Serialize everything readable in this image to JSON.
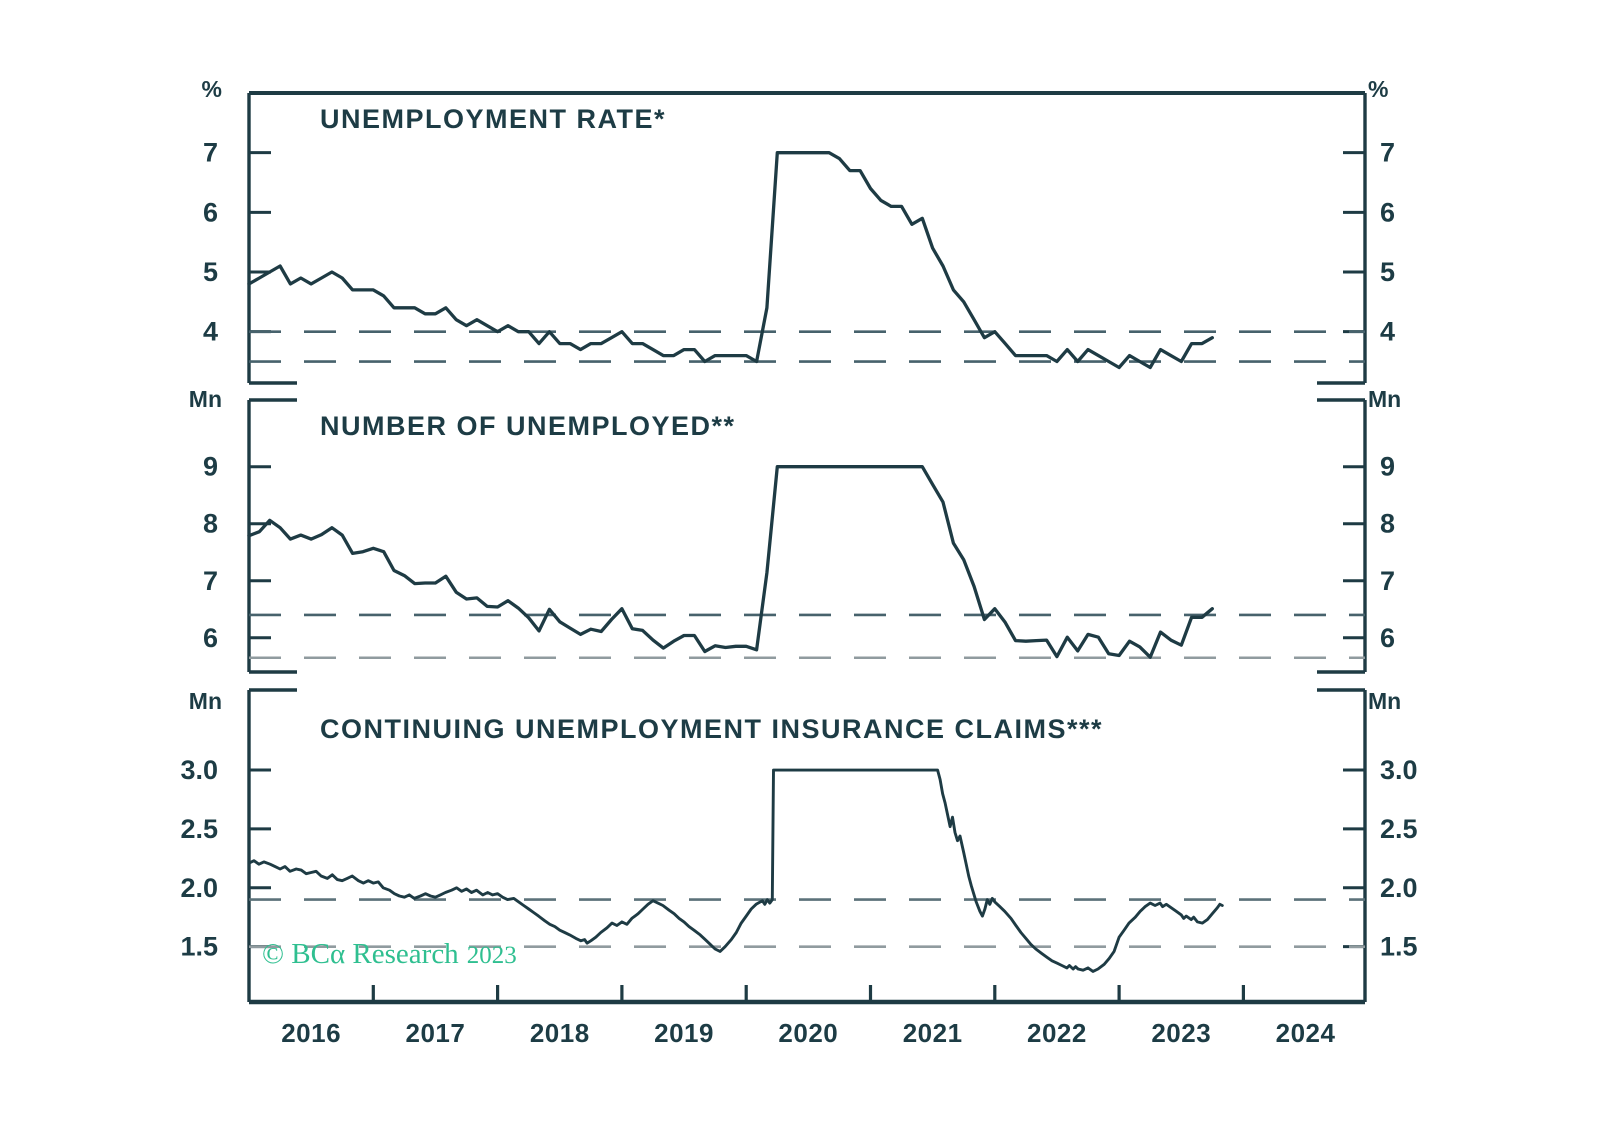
{
  "branding": {
    "copyright_main": "© BCα Research",
    "copyright_year": "2023"
  },
  "style": {
    "background": "#ffffff",
    "line_color": "#1e3b44",
    "text_color": "#1d3c45",
    "frame_color": "#1e3b44",
    "dash_dark": "#47626c",
    "dash_light": "#909b9f",
    "accent_green": "#2fbf90"
  },
  "x_axis": {
    "start_year": 2016,
    "end": 2024.98,
    "tick_years": [
      2017,
      2018,
      2019,
      2020,
      2021,
      2022,
      2023,
      2024
    ],
    "labels": [
      "2016",
      "2017",
      "2018",
      "2019",
      "2020",
      "2021",
      "2022",
      "2023",
      "2024"
    ]
  },
  "chart_data": [
    {
      "type": "line",
      "panel": "top",
      "title": "UNEMPLOYMENT RATE*",
      "unit_left": "%",
      "unit_right": "%",
      "yticks": [
        4,
        5,
        6,
        7
      ],
      "ytick_labels": [
        "4",
        "5",
        "6",
        "7"
      ],
      "ylim": [
        3.14,
        8.0
      ],
      "grid": false,
      "dashed_lines": [
        {
          "value": 4.0,
          "color": "#47626c"
        },
        {
          "value": 3.5,
          "color": "#47626c"
        }
      ],
      "series": {
        "name": "unemployment-rate",
        "frequency": "monthly",
        "x_start_year": 2016,
        "clip_max": 7.0,
        "values": [
          4.8,
          4.9,
          5.0,
          5.1,
          4.8,
          4.9,
          4.8,
          4.9,
          5.0,
          4.9,
          4.7,
          4.7,
          4.7,
          4.6,
          4.4,
          4.4,
          4.4,
          4.3,
          4.3,
          4.4,
          4.2,
          4.1,
          4.2,
          4.1,
          4.0,
          4.1,
          4.0,
          4.0,
          3.8,
          4.0,
          3.8,
          3.8,
          3.7,
          3.8,
          3.8,
          3.9,
          4.0,
          3.8,
          3.8,
          3.7,
          3.6,
          3.6,
          3.7,
          3.7,
          3.5,
          3.6,
          3.6,
          3.6,
          3.6,
          3.5,
          4.4,
          7.0,
          7.0,
          7.0,
          7.0,
          7.0,
          7.0,
          6.9,
          6.7,
          6.7,
          6.4,
          6.2,
          6.1,
          6.1,
          5.8,
          5.9,
          5.4,
          5.1,
          4.7,
          4.5,
          4.2,
          3.9,
          4.0,
          3.8,
          3.6,
          3.6,
          3.6,
          3.6,
          3.5,
          3.7,
          3.5,
          3.7,
          3.6,
          3.5,
          3.4,
          3.6,
          3.5,
          3.4,
          3.7,
          3.6,
          3.5,
          3.8,
          3.8,
          3.9
        ]
      }
    },
    {
      "type": "line",
      "panel": "middle",
      "title": "NUMBER OF UNEMPLOYED**",
      "unit_left": "Mn",
      "unit_right": "Mn",
      "yticks": [
        6,
        7,
        8,
        9
      ],
      "ytick_labels": [
        "6",
        "7",
        "8",
        "9"
      ],
      "ylim": [
        5.4,
        10.17
      ],
      "grid": false,
      "dashed_lines": [
        {
          "value": 6.4,
          "color": "#47626c"
        },
        {
          "value": 5.65,
          "color": "#909b9f"
        }
      ],
      "series": {
        "name": "number-of-unemployed",
        "frequency": "monthly",
        "x_start_year": 2016,
        "clip_max": 9.0,
        "values": [
          7.79,
          7.86,
          8.06,
          7.93,
          7.73,
          7.8,
          7.73,
          7.81,
          7.93,
          7.8,
          7.48,
          7.51,
          7.57,
          7.51,
          7.18,
          7.09,
          6.95,
          6.96,
          6.96,
          7.08,
          6.8,
          6.68,
          6.7,
          6.55,
          6.54,
          6.65,
          6.52,
          6.35,
          6.12,
          6.5,
          6.28,
          6.17,
          6.06,
          6.15,
          6.11,
          6.32,
          6.51,
          6.16,
          6.13,
          5.96,
          5.82,
          5.94,
          6.04,
          6.04,
          5.76,
          5.86,
          5.83,
          5.85,
          5.85,
          5.79,
          7.14,
          9.0,
          9.0,
          9.0,
          9.0,
          9.0,
          9.0,
          9.0,
          9.0,
          9.0,
          9.0,
          9.0,
          9.0,
          9.0,
          9.0,
          9.0,
          8.69,
          8.38,
          7.66,
          7.37,
          6.9,
          6.32,
          6.51,
          6.27,
          5.95,
          5.94,
          5.95,
          5.96,
          5.67,
          6.01,
          5.77,
          6.06,
          6.01,
          5.72,
          5.69,
          5.94,
          5.84,
          5.66,
          6.1,
          5.96,
          5.87,
          6.36,
          6.36,
          6.51
        ]
      }
    },
    {
      "type": "line",
      "panel": "bottom",
      "title": "CONTINUING UNEMPLOYMENT INSURANCE CLAIMS***",
      "unit_left": "Mn",
      "unit_right": "Mn",
      "yticks": [
        1.5,
        2.0,
        2.5,
        3.0
      ],
      "ytick_labels": [
        "1.5",
        "2.0",
        "2.5",
        "3.0"
      ],
      "ylim": [
        1.03,
        3.68
      ],
      "grid": false,
      "dashed_lines": [
        {
          "value": 1.9,
          "color": "#5c727a"
        },
        {
          "value": 1.5,
          "color": "#909b9f"
        }
      ],
      "series": {
        "name": "continuing-claims",
        "frequency": "weekly",
        "x_start_year": 2016,
        "clip_max": 3.0,
        "points": [
          [
            0.0,
            2.21
          ],
          [
            0.04,
            2.23
          ],
          [
            0.08,
            2.2
          ],
          [
            0.12,
            2.22
          ],
          [
            0.17,
            2.2
          ],
          [
            0.21,
            2.18
          ],
          [
            0.25,
            2.16
          ],
          [
            0.29,
            2.18
          ],
          [
            0.33,
            2.14
          ],
          [
            0.38,
            2.16
          ],
          [
            0.42,
            2.15
          ],
          [
            0.46,
            2.12
          ],
          [
            0.5,
            2.13
          ],
          [
            0.54,
            2.14
          ],
          [
            0.58,
            2.1
          ],
          [
            0.63,
            2.08
          ],
          [
            0.67,
            2.11
          ],
          [
            0.71,
            2.07
          ],
          [
            0.75,
            2.06
          ],
          [
            0.79,
            2.08
          ],
          [
            0.83,
            2.1
          ],
          [
            0.88,
            2.06
          ],
          [
            0.92,
            2.04
          ],
          [
            0.96,
            2.06
          ],
          [
            1.0,
            2.04
          ],
          [
            1.04,
            2.05
          ],
          [
            1.08,
            2.0
          ],
          [
            1.13,
            1.98
          ],
          [
            1.17,
            1.95
          ],
          [
            1.21,
            1.93
          ],
          [
            1.25,
            1.92
          ],
          [
            1.29,
            1.94
          ],
          [
            1.33,
            1.91
          ],
          [
            1.38,
            1.93
          ],
          [
            1.42,
            1.95
          ],
          [
            1.46,
            1.93
          ],
          [
            1.5,
            1.92
          ],
          [
            1.54,
            1.94
          ],
          [
            1.58,
            1.96
          ],
          [
            1.63,
            1.98
          ],
          [
            1.67,
            2.0
          ],
          [
            1.71,
            1.97
          ],
          [
            1.75,
            1.99
          ],
          [
            1.79,
            1.96
          ],
          [
            1.83,
            1.98
          ],
          [
            1.88,
            1.94
          ],
          [
            1.92,
            1.96
          ],
          [
            1.96,
            1.94
          ],
          [
            2.0,
            1.95
          ],
          [
            2.04,
            1.92
          ],
          [
            2.08,
            1.9
          ],
          [
            2.13,
            1.91
          ],
          [
            2.17,
            1.88
          ],
          [
            2.21,
            1.85
          ],
          [
            2.25,
            1.82
          ],
          [
            2.29,
            1.79
          ],
          [
            2.33,
            1.76
          ],
          [
            2.38,
            1.72
          ],
          [
            2.42,
            1.69
          ],
          [
            2.46,
            1.67
          ],
          [
            2.5,
            1.64
          ],
          [
            2.54,
            1.62
          ],
          [
            2.58,
            1.6
          ],
          [
            2.63,
            1.57
          ],
          [
            2.67,
            1.55
          ],
          [
            2.7,
            1.56
          ],
          [
            2.72,
            1.53
          ],
          [
            2.75,
            1.55
          ],
          [
            2.79,
            1.58
          ],
          [
            2.83,
            1.62
          ],
          [
            2.88,
            1.66
          ],
          [
            2.92,
            1.7
          ],
          [
            2.96,
            1.68
          ],
          [
            3.0,
            1.71
          ],
          [
            3.04,
            1.69
          ],
          [
            3.08,
            1.74
          ],
          [
            3.13,
            1.78
          ],
          [
            3.17,
            1.82
          ],
          [
            3.21,
            1.86
          ],
          [
            3.25,
            1.89
          ],
          [
            3.29,
            1.87
          ],
          [
            3.33,
            1.85
          ],
          [
            3.38,
            1.81
          ],
          [
            3.42,
            1.78
          ],
          [
            3.46,
            1.74
          ],
          [
            3.5,
            1.71
          ],
          [
            3.54,
            1.67
          ],
          [
            3.58,
            1.64
          ],
          [
            3.63,
            1.6
          ],
          [
            3.67,
            1.56
          ],
          [
            3.71,
            1.52
          ],
          [
            3.75,
            1.48
          ],
          [
            3.79,
            1.46
          ],
          [
            3.83,
            1.5
          ],
          [
            3.88,
            1.56
          ],
          [
            3.92,
            1.62
          ],
          [
            3.96,
            1.7
          ],
          [
            4.0,
            1.76
          ],
          [
            4.04,
            1.82
          ],
          [
            4.08,
            1.86
          ],
          [
            4.13,
            1.89
          ],
          [
            4.15,
            1.86
          ],
          [
            4.17,
            1.9
          ],
          [
            4.19,
            1.87
          ],
          [
            4.21,
            1.9
          ],
          [
            4.22,
            3.0
          ],
          [
            5.54,
            3.0
          ],
          [
            5.56,
            2.92
          ],
          [
            5.58,
            2.8
          ],
          [
            5.6,
            2.72
          ],
          [
            5.62,
            2.62
          ],
          [
            5.64,
            2.52
          ],
          [
            5.66,
            2.6
          ],
          [
            5.68,
            2.47
          ],
          [
            5.7,
            2.4
          ],
          [
            5.72,
            2.44
          ],
          [
            5.75,
            2.3
          ],
          [
            5.77,
            2.2
          ],
          [
            5.79,
            2.1
          ],
          [
            5.81,
            2.02
          ],
          [
            5.83,
            1.95
          ],
          [
            5.85,
            1.88
          ],
          [
            5.88,
            1.8
          ],
          [
            5.9,
            1.76
          ],
          [
            5.92,
            1.82
          ],
          [
            5.94,
            1.9
          ],
          [
            5.96,
            1.86
          ],
          [
            5.98,
            1.91
          ],
          [
            6.0,
            1.88
          ],
          [
            6.04,
            1.84
          ],
          [
            6.08,
            1.8
          ],
          [
            6.13,
            1.74
          ],
          [
            6.17,
            1.68
          ],
          [
            6.21,
            1.62
          ],
          [
            6.25,
            1.57
          ],
          [
            6.29,
            1.52
          ],
          [
            6.33,
            1.48
          ],
          [
            6.38,
            1.44
          ],
          [
            6.42,
            1.41
          ],
          [
            6.46,
            1.38
          ],
          [
            6.5,
            1.36
          ],
          [
            6.54,
            1.34
          ],
          [
            6.58,
            1.32
          ],
          [
            6.6,
            1.34
          ],
          [
            6.63,
            1.31
          ],
          [
            6.65,
            1.33
          ],
          [
            6.67,
            1.31
          ],
          [
            6.71,
            1.3
          ],
          [
            6.75,
            1.32
          ],
          [
            6.79,
            1.29
          ],
          [
            6.83,
            1.31
          ],
          [
            6.88,
            1.35
          ],
          [
            6.92,
            1.4
          ],
          [
            6.96,
            1.46
          ],
          [
            7.0,
            1.58
          ],
          [
            7.04,
            1.64
          ],
          [
            7.08,
            1.7
          ],
          [
            7.13,
            1.75
          ],
          [
            7.17,
            1.8
          ],
          [
            7.21,
            1.84
          ],
          [
            7.25,
            1.87
          ],
          [
            7.29,
            1.85
          ],
          [
            7.33,
            1.87
          ],
          [
            7.35,
            1.84
          ],
          [
            7.38,
            1.86
          ],
          [
            7.42,
            1.83
          ],
          [
            7.46,
            1.8
          ],
          [
            7.5,
            1.77
          ],
          [
            7.52,
            1.74
          ],
          [
            7.54,
            1.76
          ],
          [
            7.58,
            1.73
          ],
          [
            7.6,
            1.75
          ],
          [
            7.63,
            1.71
          ],
          [
            7.67,
            1.7
          ],
          [
            7.71,
            1.73
          ],
          [
            7.75,
            1.78
          ],
          [
            7.79,
            1.83
          ],
          [
            7.81,
            1.86
          ],
          [
            7.83,
            1.85
          ]
        ]
      }
    }
  ]
}
